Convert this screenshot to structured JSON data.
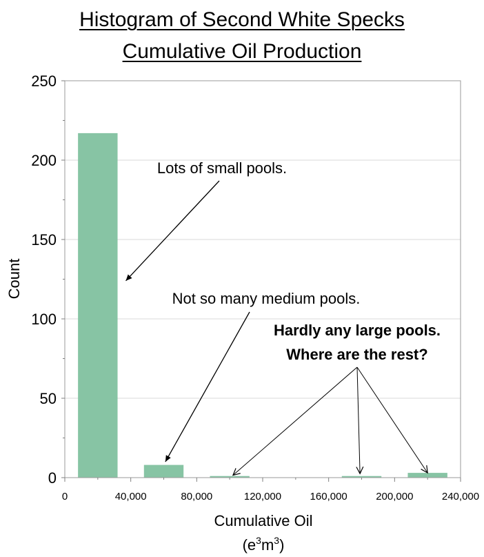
{
  "chart_data": {
    "type": "bar",
    "title": [
      "Histogram of Second White Specks",
      "Cumulative Oil Production"
    ],
    "xlabel": "Cumulative Oil",
    "xlabel_unit": {
      "base": "(e",
      "sup1": "3",
      "mid": "m",
      "sup2": "3",
      "end": ")"
    },
    "ylabel": "Count",
    "xlim": [
      0,
      240000
    ],
    "ylim": [
      0,
      250
    ],
    "x_ticks": [
      0,
      40000,
      80000,
      120000,
      160000,
      200000,
      240000
    ],
    "x_tick_labels": [
      "0",
      "40,000",
      "80,000",
      "120,000",
      "160,000",
      "200,000",
      "240,000"
    ],
    "y_ticks": [
      0,
      50,
      100,
      150,
      200,
      250
    ],
    "y_tick_labels": [
      "0",
      "50",
      "100",
      "150",
      "200",
      "250"
    ],
    "bin_width": 40000,
    "bar_fill_fraction": 0.6,
    "bins": [
      {
        "center": 20000,
        "count": 217
      },
      {
        "center": 60000,
        "count": 8
      },
      {
        "center": 100000,
        "count": 1
      },
      {
        "center": 140000,
        "count": 0
      },
      {
        "center": 180000,
        "count": 1
      },
      {
        "center": 220000,
        "count": 3
      }
    ],
    "grid": true,
    "bar_color": "#87c4a4",
    "annotations": [
      {
        "text": "Lots of small pools.",
        "bold": false,
        "arrow_targets": [
          [
            37000,
            124
          ]
        ]
      },
      {
        "text": "Not so many medium pools.",
        "bold": false,
        "arrow_targets": [
          [
            61000,
            10
          ]
        ]
      },
      {
        "text": "Hardly any large pools.",
        "bold": true,
        "arrow_targets": []
      },
      {
        "text": "Where are the rest?",
        "bold": true,
        "arrow_targets": [
          [
            102000,
            1.5
          ],
          [
            179000,
            2.5
          ],
          [
            220000,
            3
          ]
        ]
      }
    ]
  }
}
